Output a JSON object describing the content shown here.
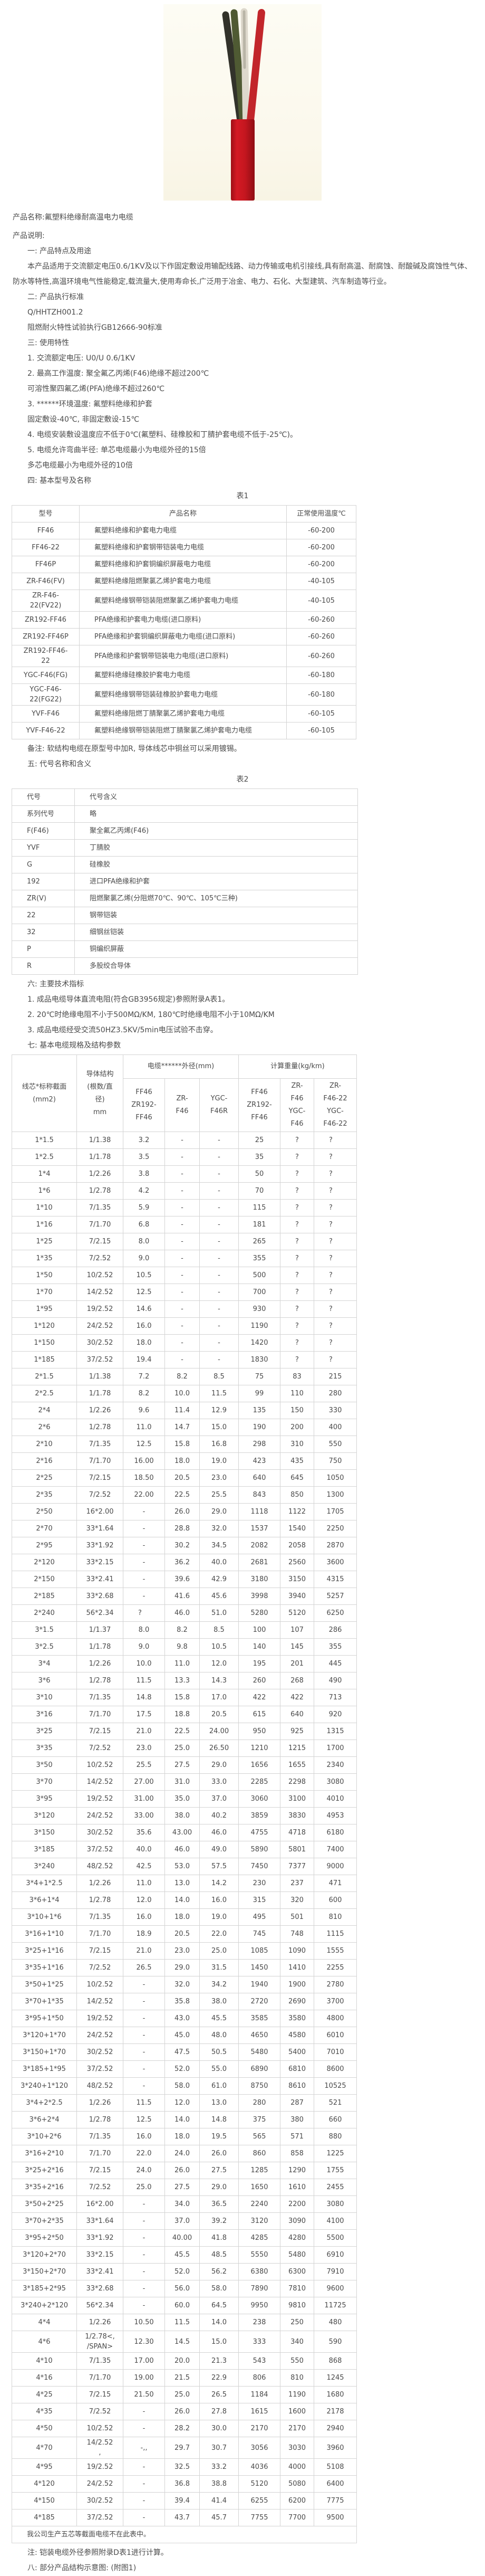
{
  "intro": {
    "product_name": "产品名称:氟塑料绝缘耐高温电力电缆",
    "product_desc_label": "产品说明:"
  },
  "intro_paragraphs": [
    "一: 产品特点及用途",
    "本产品适用于交流额定电压0.6/1KV及以下作固定敷设用输配线路、动力传输或电机引接线,具有耐高温、耐腐蚀、耐酸碱及腐蚀性气体、防水等特性,高温环境电气性能稳定,载流量大,使用寿命长,广泛用于冶金、电力、石化、大型建筑、汽车制造等行业。",
    "二: 产品执行标准",
    "Q/HHTZH001.2",
    "阻燃耐火特性试验执行GB12666-90标准",
    "三: 使用特性",
    "1. 交流额定电压: U0/U 0.6/1KV",
    "2. 最高工作温度: 聚全氟乙丙烯(F46)绝缘不超过200℃",
    "可溶性聚四氟乙烯(PFA)绝缘不超过260℃",
    "3. ******环境温度: 氟塑料绝缘和护套",
    "固定敷设-40℃, 非固定敷设-15℃",
    "4. 电缆安装敷设温度应不低于0℃(氟塑料、硅橡胶和丁腈护套电缆不低于-25℃)。",
    "5. 电缆允许弯曲半径: 单芯电缆最小为电缆外径的15倍",
    "多芯电缆最小为电缆外径的10倍",
    "四: 基本型号及名称"
  ],
  "table1": {
    "label": "表1",
    "headers": [
      "型号",
      "产品名称",
      "正常使用温度℃"
    ],
    "rows": [
      [
        "FF46",
        "氟塑料绝缘和护套电力电缆",
        "-60-200"
      ],
      [
        "FF46-22",
        "氟塑料绝缘和护套钢带铠装电力电缆",
        "-60-200"
      ],
      [
        "FF46P",
        "氟塑料绝缘和护套铜编织屏蔽电力电缆",
        "-60-200"
      ],
      [
        "ZR-F46(FV)",
        "氟塑料绝缘阻燃聚氯乙烯护套电力电缆",
        "-40-105"
      ],
      [
        "ZR-F46-\n22(FV22)",
        "氟塑料绝缘钢带铠装阻燃聚氯乙烯护套电力电缆",
        "-40-105"
      ],
      [
        "ZR192-FF46",
        "PFA绝缘和护套电力电缆(进口原料)",
        "-60-260"
      ],
      [
        "ZR192-FF46P",
        "PFA绝缘和护套铜编织屏蔽电力电缆(进口原料)",
        "-60-260"
      ],
      [
        "ZR192-FF46-\n22",
        "PFA绝缘和护套钢带铠装电力电缆(进口原料)",
        "-60-260"
      ],
      [
        "YGC-F46(FG)",
        "氟塑料绝缘硅橡胶护套电力电缆",
        "-60-180"
      ],
      [
        "YGC-F46-\n22(FG22)",
        "氟塑料绝缘钢带铠装硅橡胶护套电力电缆",
        "-60-180"
      ],
      [
        "YVF-F46",
        "氟塑料绝缘阻燃丁腈聚氯乙烯护套电力电缆",
        "-60-105"
      ],
      [
        "YVF-F46-22",
        "氟塑料绝缘钢带铠装阻燃丁腈聚氯乙烯护套电力电缆",
        "-60-105"
      ]
    ]
  },
  "mid_paragraphs": [
    "备注: 软结构电缆在原型号中加R, 导体线芯中铜丝可以采用镀锡。",
    "五: 代号名称和含义"
  ],
  "table2": {
    "label": "表2",
    "rows": [
      [
        "代号",
        "代号含义"
      ],
      [
        "系列代号",
        "略"
      ],
      [
        "F(F46)",
        "聚全氟乙丙烯(F46)"
      ],
      [
        "YVF",
        "丁腈胶"
      ],
      [
        "G",
        "硅橡胶"
      ],
      [
        "192",
        "进口PFA绝缘和护套"
      ],
      [
        "ZR(V)",
        "阻燃聚氯乙烯(分阻燃70℃、90℃、105℃三种)"
      ],
      [
        "22",
        "钢带铠装"
      ],
      [
        "32",
        "细钢丝铠装"
      ],
      [
        "P",
        "铜编织屏蔽"
      ],
      [
        "R",
        "多股绞合导体"
      ]
    ]
  },
  "prespec_paragraphs": [
    "六: 主要技术指标",
    "1. 成品电缆导体直流电阻(符合GB3956规定)参照附录A表1。",
    "2. 20℃时绝缘电阻不小于500MΩ/KM, 180℃时绝缘电阻不小于10MΩ/KM",
    "3. 成品电缆经受交流50HZ3.5KV/5min电压试验不击穿。",
    "七: 基本电缆规格及结构参数"
  ],
  "spec_table": {
    "col1_header": "线芯*标称截面\n(mm2)",
    "col2_header": "导体结构\n(根数/直\n径)\nmm",
    "od_group_header": "电缆******外径(mm)",
    "weight_group_header": "计算重量(kg/km)",
    "od_subheaders": [
      "FF46\nZR192-\nFF46",
      "ZR-\nF46",
      "YGC-\nF46R"
    ],
    "weight_subheaders": [
      "FF46\nZR192-\nFF46",
      "ZR-\nF46\nYGC-\nF46",
      "ZR-\nF46-22\nYGC-\nF46-22"
    ],
    "rows": [
      [
        "1*1.5",
        "1/1.38",
        "3.2",
        "-",
        "-",
        "25",
        "?",
        "?"
      ],
      [
        "1*2.5",
        "1/1.78",
        "3.5",
        "-",
        "-",
        "35",
        "?",
        "?"
      ],
      [
        "1*4",
        "1/2.26",
        "3.8",
        "-",
        "-",
        "50",
        "?",
        "?"
      ],
      [
        "1*6",
        "1/2.78",
        "4.2",
        "-",
        "-",
        "70",
        "?",
        "?"
      ],
      [
        "1*10",
        "7/1.35",
        "5.9",
        "-",
        "-",
        "115",
        "?",
        "?"
      ],
      [
        "1*16",
        "7/1.70",
        "6.8",
        "-",
        "-",
        "181",
        "?",
        "?"
      ],
      [
        "1*25",
        "7/2.15",
        "8.0",
        "-",
        "-",
        "265",
        "?",
        "?"
      ],
      [
        "1*35",
        "7/2.52",
        "9.0",
        "-",
        "-",
        "355",
        "?",
        "?"
      ],
      [
        "1*50",
        "10/2.52",
        "10.5",
        "-",
        "-",
        "500",
        "?",
        "?"
      ],
      [
        "1*70",
        "14/2.52",
        "12.5",
        "-",
        "-",
        "700",
        "?",
        "?"
      ],
      [
        "1*95",
        "19/2.52",
        "14.6",
        "-",
        "-",
        "930",
        "?",
        "?"
      ],
      [
        "1*120",
        "24/2.52",
        "16.0",
        "-",
        "-",
        "1190",
        "?",
        "?"
      ],
      [
        "1*150",
        "30/2.52",
        "18.0",
        "-",
        "-",
        "1420",
        "?",
        "?"
      ],
      [
        "1*185",
        "37/2.52",
        "19.4",
        "-",
        "-",
        "1830",
        "?",
        "?"
      ],
      [
        "2*1.5",
        "1/1.38",
        "7.2",
        "8.2",
        "8.5",
        "75",
        "83",
        "215"
      ],
      [
        "2*2.5",
        "1/1.78",
        "8.2",
        "10.0",
        "11.5",
        "99",
        "110",
        "280"
      ],
      [
        "2*4",
        "1/2.26",
        "9.6",
        "11.4",
        "12.9",
        "135",
        "150",
        "330"
      ],
      [
        "2*6",
        "1/2.78",
        "11.0",
        "14.7",
        "15.0",
        "190",
        "200",
        "400"
      ],
      [
        "2*10",
        "7/1.35",
        "12.5",
        "15.8",
        "16.8",
        "298",
        "310",
        "550"
      ],
      [
        "2*16",
        "7/1.70",
        "16.00",
        "18.0",
        "19.0",
        "423",
        "435",
        "750"
      ],
      [
        "2*25",
        "7/2.15",
        "18.50",
        "20.5",
        "23.0",
        "640",
        "645",
        "1050"
      ],
      [
        "2*35",
        "7/2.52",
        "22.00",
        "22.5",
        "25.5",
        "843",
        "850",
        "1300"
      ],
      [
        "2*50",
        "16*2.00",
        "-",
        "26.0",
        "29.0",
        "1118",
        "1122",
        "1705"
      ],
      [
        "2*70",
        "33*1.64",
        "-",
        "28.8",
        "32.0",
        "1537",
        "1540",
        "2250"
      ],
      [
        "2*95",
        "33*1.92",
        "-",
        "30.2",
        "34.5",
        "2082",
        "2058",
        "2870"
      ],
      [
        "2*120",
        "33*2.15",
        "-",
        "36.2",
        "40.0",
        "2681",
        "2560",
        "3600"
      ],
      [
        "2*150",
        "33*2.41",
        "-",
        "39.6",
        "42.9",
        "3180",
        "3150",
        "4315"
      ],
      [
        "2*185",
        "33*2.68",
        "-",
        "41.6",
        "45.6",
        "3998",
        "3940",
        "5257"
      ],
      [
        "2*240",
        "56*2.34",
        "?",
        "46.0",
        "51.0",
        "5280",
        "5120",
        "6250"
      ],
      [
        "3*1.5",
        "1/1.37",
        "8.0",
        "8.2",
        "8.5",
        "100",
        "107",
        "286"
      ],
      [
        "3*2.5",
        "1/1.78",
        "9.0",
        "9.8",
        "10.5",
        "140",
        "145",
        "355"
      ],
      [
        "3*4",
        "1/2.26",
        "10.0",
        "11.0",
        "12.0",
        "195",
        "201",
        "445"
      ],
      [
        "3*6",
        "1/2.78",
        "11.5",
        "13.3",
        "14.3",
        "260",
        "268",
        "490"
      ],
      [
        "3*10",
        "7/1.35",
        "14.8",
        "15.8",
        "17.0",
        "422",
        "422",
        "713"
      ],
      [
        "3*16",
        "7/1.70",
        "17.5",
        "18.8",
        "20.5",
        "615",
        "640",
        "920"
      ],
      [
        "3*25",
        "7/2.15",
        "21.0",
        "22.5",
        "24.00",
        "950",
        "925",
        "1315"
      ],
      [
        "3*35",
        "7/2.52",
        "23.0",
        "25.0",
        "26.50",
        "1210",
        "1215",
        "1700"
      ],
      [
        "3*50",
        "10/2.52",
        "25.5",
        "27.5",
        "29.0",
        "1656",
        "1655",
        "2340"
      ],
      [
        "3*70",
        "14/2.52",
        "27.00",
        "31.0",
        "33.0",
        "2285",
        "2298",
        "3080"
      ],
      [
        "3*95",
        "19/2.52",
        "31.00",
        "35.0",
        "37.0",
        "3060",
        "3100",
        "4010"
      ],
      [
        "3*120",
        "24/2.52",
        "33.00",
        "38.0",
        "40.2",
        "3859",
        "3830",
        "4953"
      ],
      [
        "3*150",
        "30/2.52",
        "35.6",
        "43.00",
        "46.0",
        "4755",
        "4718",
        "6180"
      ],
      [
        "3*185",
        "37/2.52",
        "40.0",
        "46.0",
        "49.0",
        "5890",
        "5801",
        "7400"
      ],
      [
        "3*240",
        "48/2.52",
        "42.5",
        "53.0",
        "57.5",
        "7450",
        "7377",
        "9000"
      ],
      [
        "3*4+1*2.5",
        "1/2.26",
        "11.0",
        "13.0",
        "14.2",
        "230",
        "237",
        "471"
      ],
      [
        "3*6+1*4",
        "1/2.78",
        "12.0",
        "14.0",
        "16.0",
        "315",
        "320",
        "600"
      ],
      [
        "3*10+1*6",
        "7/1.35",
        "16.0",
        "18.0",
        "19.0",
        "495",
        "501",
        "810"
      ],
      [
        "3*16+1*10",
        "7/1.70",
        "18.9",
        "20.5",
        "22.0",
        "745",
        "748",
        "1115"
      ],
      [
        "3*25+1*16",
        "7/2.15",
        "21.0",
        "23.0",
        "25.0",
        "1085",
        "1090",
        "1555"
      ],
      [
        "3*35+1*16",
        "7/2.52",
        "26.5",
        "29.0",
        "31.5",
        "1450",
        "1410",
        "2255"
      ],
      [
        "3*50+1*25",
        "10/2.52",
        "-",
        "32.0",
        "34.2",
        "1940",
        "1900",
        "2780"
      ],
      [
        "3*70+1*35",
        "14/2.52",
        "-",
        "35.8",
        "38.0",
        "2720",
        "2690",
        "3700"
      ],
      [
        "3*95+1*50",
        "19/2.52",
        "-",
        "43.0",
        "45.5",
        "3585",
        "3580",
        "4800"
      ],
      [
        "3*120+1*70",
        "24/2.52",
        "-",
        "45.0",
        "48.0",
        "4650",
        "4580",
        "6010"
      ],
      [
        "3*150+1*70",
        "30/2.52",
        "-",
        "47.5",
        "50.5",
        "5480",
        "5400",
        "7010"
      ],
      [
        "3*185+1*95",
        "37/2.52",
        "-",
        "52.0",
        "55.0",
        "6890",
        "6810",
        "8600"
      ],
      [
        "3*240+1*120",
        "48/2.52",
        "-",
        "58.0",
        "61.0",
        "8750",
        "8610",
        "10525"
      ],
      [
        "3*4+2*2.5",
        "1/2.26",
        "11.5",
        "12.0",
        "13.0",
        "280",
        "287",
        "521"
      ],
      [
        "3*6+2*4",
        "1/2.78",
        "12.5",
        "14.0",
        "14.8",
        "375",
        "380",
        "660"
      ],
      [
        "3*10+2*6",
        "7/1.35",
        "16.0",
        "18.0",
        "19.5",
        "565",
        "571",
        "880"
      ],
      [
        "3*16+2*10",
        "7/1.70",
        "22.0",
        "24.0",
        "26.0",
        "860",
        "858",
        "1225"
      ],
      [
        "3*25+2*16",
        "7/2.15",
        "24.0",
        "26.0",
        "27.5",
        "1285",
        "1290",
        "1755"
      ],
      [
        "3*35+2*16",
        "7/2.52",
        "25.0",
        "27.5",
        "29.0",
        "1650",
        "1610",
        "2455"
      ],
      [
        "3*50+2*25",
        "16*2.00",
        "-",
        "34.0",
        "36.5",
        "2240",
        "2200",
        "3080"
      ],
      [
        "3*70+2*35",
        "33*1.64",
        "-",
        "37.0",
        "39.2",
        "3120",
        "3090",
        "4100"
      ],
      [
        "3*95+2*50",
        "33*1.92",
        "-",
        "40.00",
        "41.8",
        "4285",
        "4280",
        "5500"
      ],
      [
        "3*120+2*70",
        "33*2.15",
        "-",
        "45.5",
        "48.5",
        "5550",
        "5480",
        "6910"
      ],
      [
        "3*150+2*70",
        "33*2.41",
        "-",
        "52.0",
        "56.2",
        "6380",
        "6300",
        "7910"
      ],
      [
        "3*185+2*95",
        "33*2.68",
        "-",
        "56.0",
        "58.0",
        "7890",
        "7810",
        "9600"
      ],
      [
        "3*240+2*120",
        "56*2.34",
        "-",
        "60.0",
        "64.5",
        "9950",
        "9810",
        "11725"
      ],
      [
        "4*4",
        "1/2.26",
        "10.50",
        "11.5",
        "14.0",
        "238",
        "250",
        "480"
      ],
      [
        "4*6",
        "1/2.78<,\n/SPAN>",
        "12.30",
        "14.5",
        "15.0",
        "333",
        "340",
        "590"
      ],
      [
        "4*10",
        "7/1.35",
        "17.00",
        "20.0",
        "21.3",
        "543",
        "550",
        "868"
      ],
      [
        "4*16",
        "7/1.70",
        "19.00",
        "21.5",
        "22.9",
        "806",
        "810",
        "1245"
      ],
      [
        "4*25",
        "7/2.15",
        "21.50",
        "25.0",
        "26.5",
        "1184",
        "1190",
        "1680"
      ],
      [
        "4*35",
        "7/2.52",
        "-",
        "26.0",
        "27.8",
        "1615",
        "1600",
        "2178"
      ],
      [
        "4*50",
        "10/2.52",
        "-",
        "28.2",
        "30.0",
        "2170",
        "2170",
        "2940"
      ],
      [
        "4*70",
        "14/2.52\n,",
        "-,,",
        "29.7",
        "30.7",
        "3056",
        "3030",
        "3960"
      ],
      [
        "4*95",
        "19/2.52",
        "-",
        "32.5",
        "33.2",
        "4036",
        "4000",
        "5108"
      ],
      [
        "4*120",
        "24/2.52",
        "-",
        "36.8",
        "38.8",
        "5120",
        "5080",
        "6400"
      ],
      [
        "4*150",
        "30/2.52",
        "-",
        "39.4",
        "41.4",
        "6255",
        "6200",
        "7775"
      ],
      [
        "4*185",
        "37/2.52",
        "-",
        "43.7",
        "45.7",
        "7755",
        "7700",
        "9500"
      ]
    ],
    "footnote_row": "我公司生产五芯等截面电缆不在此表中。"
  },
  "footer_paragraphs": [
    "注: 铠装电缆外径参照附录D表1进行计算。",
    "八: 部分产品结构示意图: (附图1)"
  ],
  "photo": {
    "colors": {
      "jacket_red": "#c4161f",
      "wire_black": "#32322a",
      "wire_green": "#4f5a33",
      "wire_white": "#ddd8cc",
      "wire_red": "#c2262b",
      "background": "#fbf8ec"
    }
  }
}
